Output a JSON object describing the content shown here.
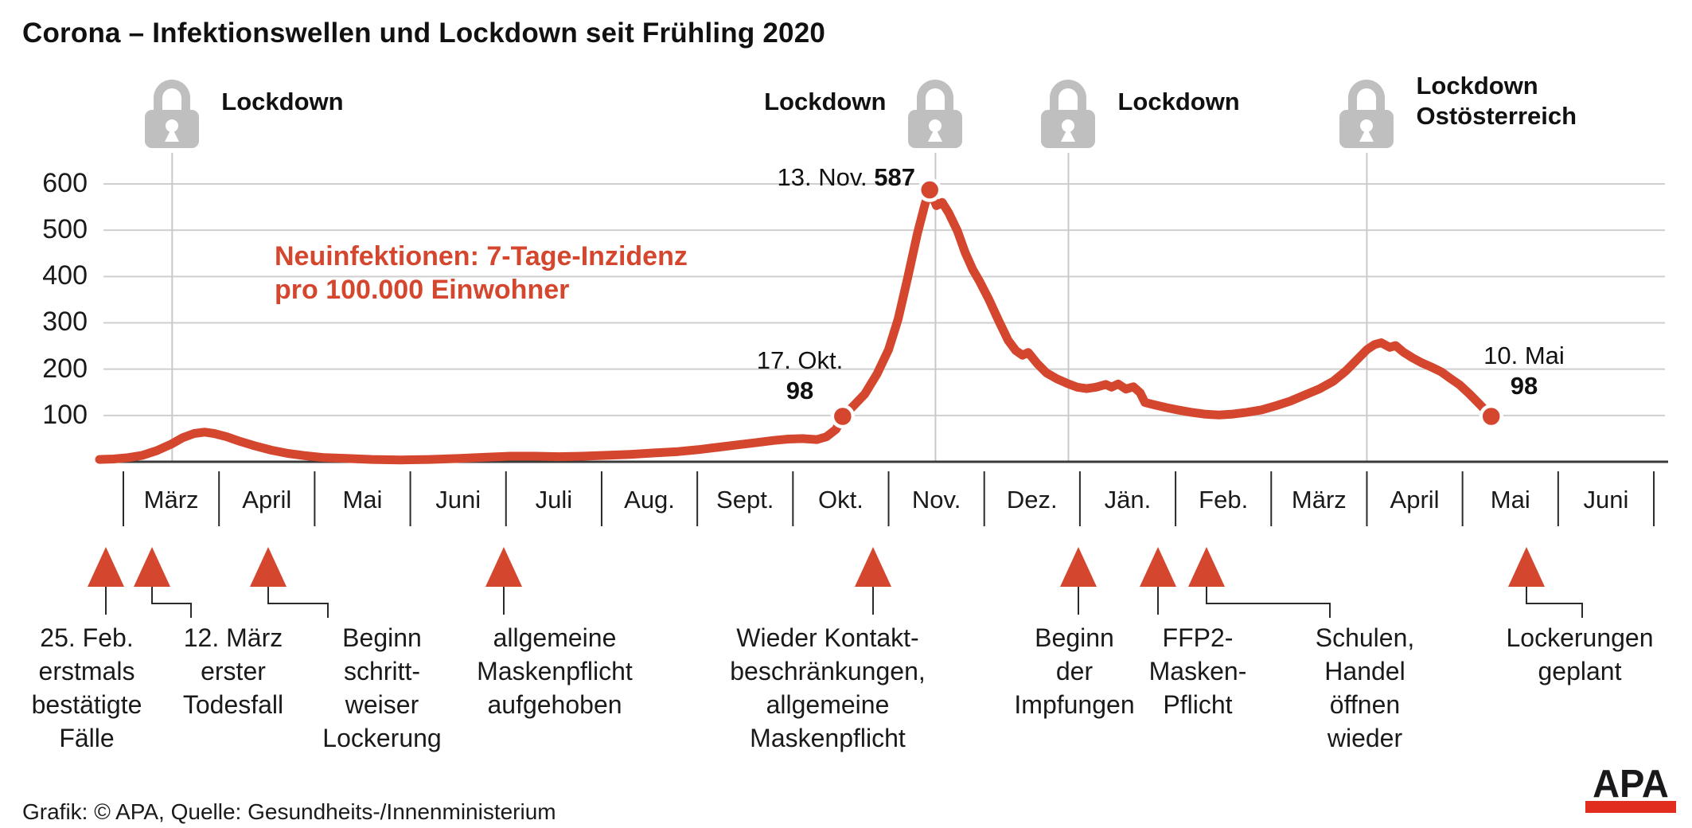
{
  "title": "Corona – Infektionswellen und Lockdown seit Frühling 2020",
  "colors": {
    "line_red": "#d5462e",
    "arrow_red": "#d5462e",
    "note_red": "#d5462e",
    "lock_gray": "#bfbfbf",
    "grid_gray": "#cfcfcf",
    "guide_gray": "#c9c9c9",
    "axis_dark": "#3a3a3a",
    "logo_red": "#e02d1e",
    "text_dark": "#1a1a1a"
  },
  "lockdowns": [
    {
      "label": "Lockdown"
    },
    {
      "label": "Lockdown"
    },
    {
      "label": "Lockdown"
    },
    {
      "label": "Lockdown",
      "label2": "Ostösterreich"
    }
  ],
  "note": {
    "line1": "Neuinfektionen: 7-Tage-Inzidenz",
    "line2": "pro 100.000 Einwohner"
  },
  "point_labels": [
    {
      "date": "17. Okt.",
      "value": "98"
    },
    {
      "date": "13. Nov.",
      "value": "587"
    },
    {
      "date": "10. Mai",
      "value": "98"
    }
  ],
  "events": [
    {
      "lines": [
        "25. Feb.",
        "erstmals",
        "bestätigte",
        "Fälle"
      ]
    },
    {
      "lines": [
        "12. März",
        "erster",
        "Todesfall"
      ]
    },
    {
      "lines": [
        "Beginn",
        "schritt-",
        "weiser",
        "Lockerung"
      ]
    },
    {
      "lines": [
        "allgemeine",
        "Maskenpflicht",
        "aufgehoben"
      ]
    },
    {
      "lines": [
        "Wieder Kontakt-",
        "beschränkungen,",
        "allgemeine",
        "Maskenpflicht"
      ]
    },
    {
      "lines": [
        "Beginn",
        "der",
        "Impfungen"
      ]
    },
    {
      "lines": [
        "FFP2-",
        "Masken-",
        "Pflicht"
      ]
    },
    {
      "lines": [
        "Schulen,",
        "Handel",
        "öffnen",
        "wieder"
      ]
    },
    {
      "lines": [
        "Lockerungen",
        "geplant"
      ]
    }
  ],
  "footer": {
    "credit": "Grafik: © APA, Quelle: Gesundheits-/Innenministerium",
    "logo": "APA"
  },
  "chart_data": {
    "type": "line",
    "title": "Corona – Infektionswellen und Lockdown seit Frühling 2020",
    "series_label": "Neuinfektionen: 7-Tage-Inzidenz pro 100.000 Einwohner",
    "x_unit": "months since 1. März 2020 (0 = 1. März 2020, uniform month spacing)",
    "categories": [
      "März",
      "April",
      "Mai",
      "Juni",
      "Juli",
      "Aug.",
      "Sept.",
      "Okt.",
      "Nov.",
      "Dez.",
      "Jän.",
      "Feb.",
      "März",
      "April",
      "Mai",
      "Juni"
    ],
    "y_ticks": [
      600,
      500,
      400,
      300,
      200,
      100
    ],
    "ylim": [
      0,
      640
    ],
    "grid": true,
    "legend_position": "none",
    "highlighted_points": [
      {
        "date": "17. Okt.",
        "x": 7.52,
        "value": 98
      },
      {
        "date": "13. Nov.",
        "x": 8.43,
        "value": 587
      },
      {
        "date": "10. Mai",
        "x": 14.3,
        "value": 98
      }
    ],
    "lockdown_guides_x": [
      0.51,
      8.49,
      9.88,
      13.0
    ],
    "points": [
      [
        -0.25,
        5
      ],
      [
        -0.1,
        6
      ],
      [
        0.05,
        9
      ],
      [
        0.2,
        14
      ],
      [
        0.35,
        24
      ],
      [
        0.5,
        38
      ],
      [
        0.62,
        52
      ],
      [
        0.74,
        61
      ],
      [
        0.85,
        64
      ],
      [
        0.95,
        61
      ],
      [
        1.08,
        54
      ],
      [
        1.22,
        44
      ],
      [
        1.38,
        34
      ],
      [
        1.55,
        25
      ],
      [
        1.72,
        18
      ],
      [
        1.9,
        13
      ],
      [
        2.1,
        9
      ],
      [
        2.35,
        7
      ],
      [
        2.6,
        5
      ],
      [
        2.9,
        4
      ],
      [
        3.2,
        5
      ],
      [
        3.5,
        7
      ],
      [
        3.8,
        10
      ],
      [
        4.05,
        12
      ],
      [
        4.3,
        12
      ],
      [
        4.55,
        11
      ],
      [
        4.8,
        12
      ],
      [
        5.05,
        14
      ],
      [
        5.3,
        16
      ],
      [
        5.55,
        19
      ],
      [
        5.8,
        22
      ],
      [
        6.0,
        26
      ],
      [
        6.2,
        31
      ],
      [
        6.4,
        36
      ],
      [
        6.6,
        41
      ],
      [
        6.8,
        46
      ],
      [
        6.95,
        49
      ],
      [
        7.1,
        50
      ],
      [
        7.25,
        48
      ],
      [
        7.35,
        54
      ],
      [
        7.45,
        70
      ],
      [
        7.52,
        98
      ],
      [
        7.62,
        118
      ],
      [
        7.75,
        146
      ],
      [
        7.88,
        190
      ],
      [
        8.0,
        242
      ],
      [
        8.1,
        308
      ],
      [
        8.2,
        398
      ],
      [
        8.3,
        492
      ],
      [
        8.38,
        556
      ],
      [
        8.43,
        587
      ],
      [
        8.5,
        553
      ],
      [
        8.56,
        560
      ],
      [
        8.63,
        537
      ],
      [
        8.72,
        498
      ],
      [
        8.8,
        452
      ],
      [
        8.88,
        415
      ],
      [
        8.95,
        390
      ],
      [
        9.05,
        350
      ],
      [
        9.15,
        305
      ],
      [
        9.25,
        262
      ],
      [
        9.33,
        240
      ],
      [
        9.4,
        230
      ],
      [
        9.46,
        236
      ],
      [
        9.55,
        213
      ],
      [
        9.65,
        192
      ],
      [
        9.76,
        179
      ],
      [
        9.87,
        169
      ],
      [
        9.97,
        161
      ],
      [
        10.07,
        158
      ],
      [
        10.17,
        161
      ],
      [
        10.27,
        167
      ],
      [
        10.33,
        161
      ],
      [
        10.4,
        168
      ],
      [
        10.48,
        157
      ],
      [
        10.56,
        162
      ],
      [
        10.63,
        149
      ],
      [
        10.68,
        128
      ],
      [
        10.78,
        123
      ],
      [
        10.9,
        117
      ],
      [
        11.02,
        112
      ],
      [
        11.16,
        107
      ],
      [
        11.3,
        103
      ],
      [
        11.45,
        101
      ],
      [
        11.6,
        103
      ],
      [
        11.75,
        107
      ],
      [
        11.9,
        112
      ],
      [
        12.05,
        121
      ],
      [
        12.2,
        131
      ],
      [
        12.35,
        144
      ],
      [
        12.5,
        157
      ],
      [
        12.65,
        174
      ],
      [
        12.78,
        196
      ],
      [
        12.9,
        221
      ],
      [
        13.0,
        242
      ],
      [
        13.08,
        253
      ],
      [
        13.15,
        257
      ],
      [
        13.24,
        247
      ],
      [
        13.3,
        251
      ],
      [
        13.38,
        237
      ],
      [
        13.48,
        224
      ],
      [
        13.58,
        213
      ],
      [
        13.68,
        204
      ],
      [
        13.78,
        194
      ],
      [
        13.88,
        179
      ],
      [
        13.97,
        166
      ],
      [
        14.07,
        147
      ],
      [
        14.18,
        124
      ],
      [
        14.3,
        98
      ]
    ]
  }
}
